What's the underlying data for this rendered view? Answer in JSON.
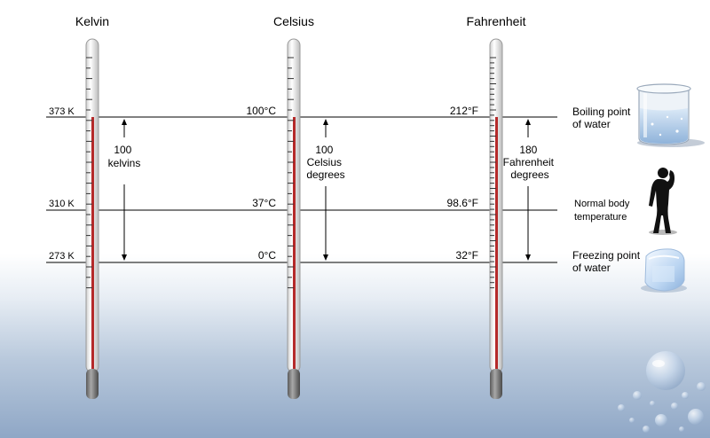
{
  "scales": [
    {
      "title": "Kelvin",
      "readings": {
        "boiling": "373 K",
        "body": "310 K",
        "freezing": "273 K"
      },
      "span_lines": [
        "100",
        "kelvins"
      ]
    },
    {
      "title": "Celsius",
      "readings": {
        "boiling": "100°C",
        "body": "37°C",
        "freezing": "0°C"
      },
      "span_lines": [
        "100",
        "Celsius",
        "degrees"
      ]
    },
    {
      "title": "Fahrenheit",
      "readings": {
        "boiling": "212°F",
        "body": "98.6°F",
        "freezing": "32°F"
      },
      "span_lines": [
        "180",
        "Fahrenheit",
        "degrees"
      ]
    }
  ],
  "reference_points": {
    "boiling": [
      "Boiling point",
      "of water"
    ],
    "body": [
      "Normal body",
      "temperature"
    ],
    "freezing": [
      "Freezing point",
      "of water"
    ]
  },
  "icons": {
    "beaker": "beaker-of-water-icon",
    "person": "human-silhouette-icon",
    "ice": "ice-cube-icon",
    "drops": "water-droplets-icon"
  },
  "colors": {
    "mercury": "#b52a2a",
    "tube": "#ffffff",
    "bulb": "#7a7a7a",
    "line": "#000000"
  }
}
